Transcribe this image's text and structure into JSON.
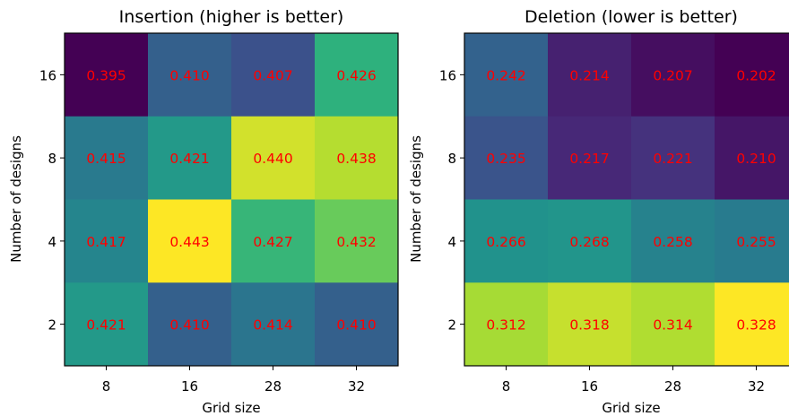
{
  "chart_data": [
    {
      "type": "heatmap",
      "title": "Insertion (higher is better)",
      "xlabel": "Grid size",
      "ylabel": "Number of designs",
      "x_categories": [
        "8",
        "16",
        "28",
        "32"
      ],
      "y_categories": [
        "16",
        "8",
        "4",
        "2"
      ],
      "values": [
        [
          0.395,
          0.41,
          0.407,
          0.426
        ],
        [
          0.415,
          0.421,
          0.44,
          0.438
        ],
        [
          0.417,
          0.443,
          0.427,
          0.432
        ],
        [
          0.421,
          0.41,
          0.414,
          0.41
        ]
      ],
      "colormap": "viridis",
      "annotation_color": "#ff0000"
    },
    {
      "type": "heatmap",
      "title": "Deletion (lower is better)",
      "xlabel": "Grid size",
      "ylabel": "Number of designs",
      "x_categories": [
        "8",
        "16",
        "28",
        "32"
      ],
      "y_categories": [
        "16",
        "8",
        "4",
        "2"
      ],
      "values": [
        [
          0.242,
          0.214,
          0.207,
          0.202
        ],
        [
          0.235,
          0.217,
          0.221,
          0.21
        ],
        [
          0.266,
          0.268,
          0.258,
          0.255
        ],
        [
          0.312,
          0.318,
          0.314,
          0.328
        ]
      ],
      "colormap": "viridis",
      "annotation_color": "#ff0000"
    }
  ]
}
